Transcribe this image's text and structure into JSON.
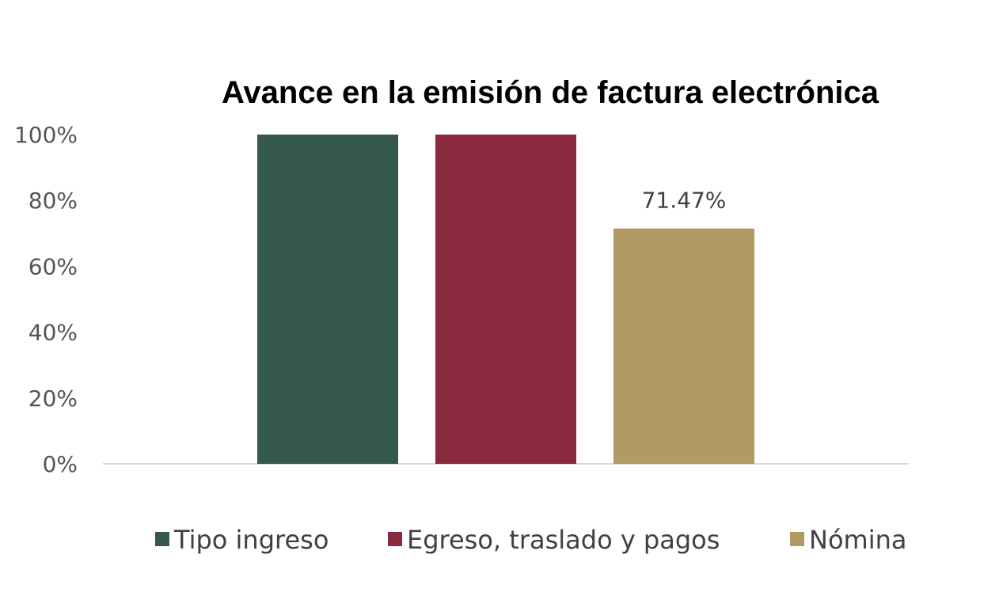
{
  "chart_data": {
    "type": "bar",
    "title": "Avance en la emisión de factura electrónica",
    "xlabel": "",
    "ylabel": "",
    "ylim": [
      0,
      100
    ],
    "yticks": [
      "0%",
      "20%",
      "40%",
      "60%",
      "80%",
      "100%"
    ],
    "grid": false,
    "legend_position": "bottom",
    "series": [
      {
        "name": "Tipo ingreso",
        "value": 100,
        "color": "#355A4C",
        "data_label": ""
      },
      {
        "name": "Egreso, traslado y pagos",
        "value": 100,
        "color": "#8B2A3E",
        "data_label": ""
      },
      {
        "name": "Nómina",
        "value": 71.47,
        "color": "#B29A65",
        "data_label": "71.47%"
      }
    ]
  }
}
